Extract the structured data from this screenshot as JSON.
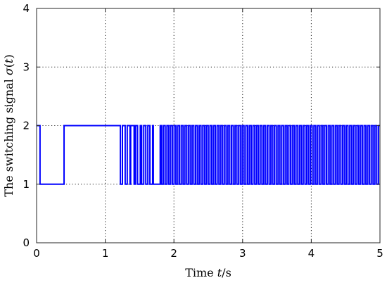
{
  "chart_data": {
    "type": "line",
    "title": "",
    "xlabel_parts": [
      "Time ",
      "t",
      "/s"
    ],
    "ylabel_parts": [
      "The switching signal ",
      "σ",
      "(",
      "t",
      ")"
    ],
    "xlim": [
      0,
      5
    ],
    "ylim": [
      0,
      4
    ],
    "xticks": [
      0,
      1,
      2,
      3,
      4,
      5
    ],
    "yticks": [
      0,
      1,
      2,
      3,
      4
    ],
    "xtick_labels": [
      "0",
      "1",
      "2",
      "3",
      "4",
      "5"
    ],
    "ytick_labels": [
      "0",
      "1",
      "2",
      "3",
      "4"
    ],
    "grid": true,
    "line_color": "#0000ff",
    "series": [
      {
        "style": "step",
        "x": [
          0,
          0.05,
          0.4,
          1.22,
          1.25,
          1.29,
          1.32,
          1.36,
          1.37,
          1.42,
          1.44,
          1.47,
          1.51,
          1.53,
          1.56,
          1.59,
          1.62,
          1.65,
          1.69,
          1.7,
          1.8,
          1.82
        ],
        "y": [
          2,
          1,
          2,
          1,
          2,
          1,
          2,
          1,
          2,
          1,
          2,
          1,
          2,
          1,
          2,
          1,
          2,
          1,
          2,
          1,
          2,
          1
        ]
      },
      {
        "style": "periodic-switching",
        "t_start": 1.82,
        "t_end": 5.0,
        "period": 0.0522,
        "duty_high": 0.5,
        "levels": [
          1,
          2
        ]
      }
    ]
  }
}
